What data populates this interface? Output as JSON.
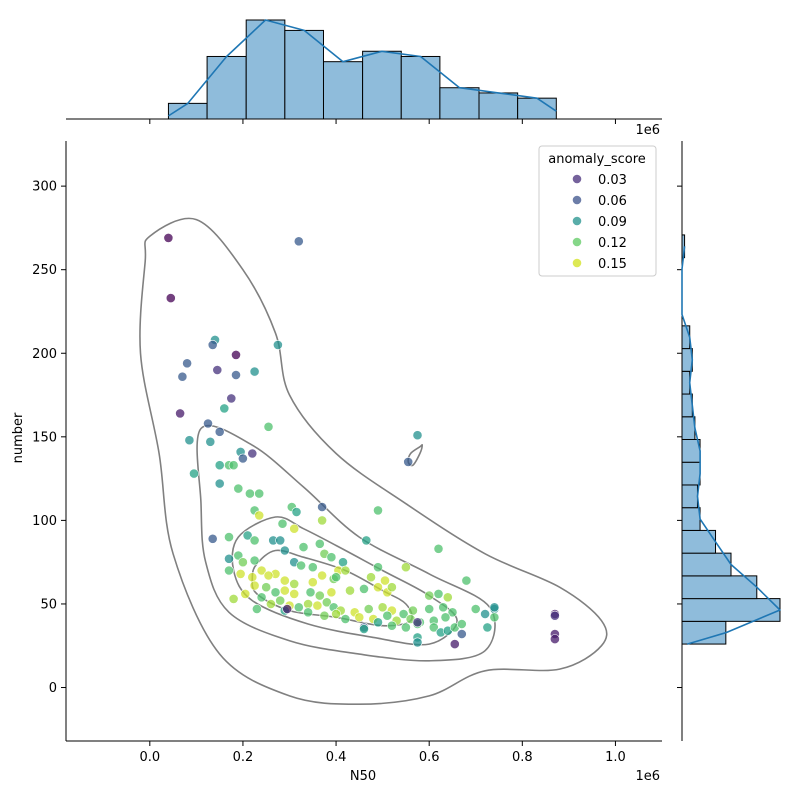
{
  "chart_data": {
    "type": "scatter",
    "kind": "joint plot with KDE contours and marginal histograms",
    "xlabel": "N50",
    "ylabel": "number",
    "x_offset_label": "1e6",
    "top_offset_label": "1e6",
    "xlim": [
      -0.18,
      1.1
    ],
    "ylim": [
      -32,
      327
    ],
    "x_ticks": [
      0.0,
      0.2,
      0.4,
      0.6,
      0.8,
      1.0
    ],
    "x_tick_labels": [
      "0.0",
      "0.2",
      "0.4",
      "0.6",
      "0.8",
      "1.0"
    ],
    "y_ticks": [
      0,
      50,
      100,
      150,
      200,
      250,
      300
    ],
    "y_tick_labels": [
      "0",
      "50",
      "100",
      "150",
      "200",
      "250",
      "300"
    ],
    "grid": false,
    "legend": {
      "title": "anomaly_score",
      "placement": "top-right",
      "entries": [
        {
          "label": "0.03",
          "color": "#472d7b"
        },
        {
          "label": "0.06",
          "color": "#3b528b"
        },
        {
          "label": "0.09",
          "color": "#21918c"
        },
        {
          "label": "0.12",
          "color": "#5ec962"
        },
        {
          "label": "0.15",
          "color": "#d2e21b"
        }
      ]
    },
    "colormap": "viridis",
    "score_range": [
      0.02,
      0.16
    ],
    "points": [
      [
        0.04,
        269,
        0.02
      ],
      [
        0.045,
        233,
        0.02
      ],
      [
        0.32,
        267,
        0.06
      ],
      [
        0.14,
        208,
        0.09
      ],
      [
        0.135,
        205,
        0.06
      ],
      [
        0.08,
        194,
        0.06
      ],
      [
        0.07,
        186,
        0.06
      ],
      [
        0.185,
        199,
        0.02
      ],
      [
        0.145,
        190,
        0.04
      ],
      [
        0.185,
        187,
        0.06
      ],
      [
        0.225,
        189,
        0.09
      ],
      [
        0.275,
        205,
        0.09
      ],
      [
        0.175,
        173,
        0.04
      ],
      [
        0.065,
        164,
        0.03
      ],
      [
        0.16,
        167,
        0.1
      ],
      [
        0.125,
        158,
        0.06
      ],
      [
        0.15,
        153,
        0.06
      ],
      [
        0.085,
        148,
        0.09
      ],
      [
        0.13,
        147,
        0.09
      ],
      [
        0.195,
        141,
        0.09
      ],
      [
        0.22,
        140,
        0.04
      ],
      [
        0.2,
        137,
        0.06
      ],
      [
        0.255,
        156,
        0.12
      ],
      [
        0.15,
        133,
        0.1
      ],
      [
        0.17,
        133,
        0.12
      ],
      [
        0.18,
        133,
        0.12
      ],
      [
        0.095,
        128,
        0.1
      ],
      [
        0.15,
        122,
        0.09
      ],
      [
        0.19,
        119,
        0.12
      ],
      [
        0.215,
        116,
        0.12
      ],
      [
        0.235,
        116,
        0.12
      ],
      [
        0.37,
        108,
        0.06
      ],
      [
        0.305,
        108,
        0.12
      ],
      [
        0.315,
        105,
        0.1
      ],
      [
        0.225,
        106,
        0.12
      ],
      [
        0.235,
        103,
        0.15
      ],
      [
        0.37,
        100,
        0.14
      ],
      [
        0.285,
        98,
        0.12
      ],
      [
        0.31,
        95,
        0.15
      ],
      [
        0.49,
        106,
        0.12
      ],
      [
        0.575,
        151,
        0.09
      ],
      [
        0.555,
        135,
        0.06
      ],
      [
        0.135,
        89,
        0.06
      ],
      [
        0.17,
        90,
        0.12
      ],
      [
        0.21,
        91,
        0.1
      ],
      [
        0.225,
        88,
        0.12
      ],
      [
        0.265,
        88,
        0.09
      ],
      [
        0.28,
        88,
        0.09
      ],
      [
        0.29,
        82,
        0.09
      ],
      [
        0.33,
        84,
        0.12
      ],
      [
        0.365,
        86,
        0.12
      ],
      [
        0.375,
        80,
        0.13
      ],
      [
        0.39,
        78,
        0.12
      ],
      [
        0.415,
        75,
        0.1
      ],
      [
        0.465,
        88,
        0.1
      ],
      [
        0.62,
        83,
        0.12
      ],
      [
        0.17,
        77,
        0.09
      ],
      [
        0.19,
        79,
        0.12
      ],
      [
        0.2,
        75,
        0.13
      ],
      [
        0.225,
        76,
        0.12
      ],
      [
        0.24,
        70,
        0.15
      ],
      [
        0.27,
        68,
        0.15
      ],
      [
        0.31,
        75,
        0.09
      ],
      [
        0.325,
        73,
        0.12
      ],
      [
        0.35,
        72,
        0.12
      ],
      [
        0.405,
        70,
        0.15
      ],
      [
        0.42,
        70,
        0.14
      ],
      [
        0.49,
        72,
        0.12
      ],
      [
        0.55,
        72,
        0.14
      ],
      [
        0.17,
        70,
        0.12
      ],
      [
        0.195,
        68,
        0.15
      ],
      [
        0.22,
        66,
        0.15
      ],
      [
        0.255,
        67,
        0.15
      ],
      [
        0.29,
        64,
        0.15
      ],
      [
        0.31,
        62,
        0.14
      ],
      [
        0.35,
        63,
        0.15
      ],
      [
        0.395,
        65,
        0.13
      ],
      [
        0.4,
        66,
        0.12
      ],
      [
        0.37,
        67,
        0.15
      ],
      [
        0.475,
        66,
        0.14
      ],
      [
        0.505,
        64,
        0.15
      ],
      [
        0.68,
        64,
        0.12
      ],
      [
        0.225,
        61,
        0.15
      ],
      [
        0.25,
        60,
        0.13
      ],
      [
        0.27,
        57,
        0.12
      ],
      [
        0.29,
        58,
        0.15
      ],
      [
        0.31,
        56,
        0.15
      ],
      [
        0.345,
        57,
        0.12
      ],
      [
        0.365,
        55,
        0.13
      ],
      [
        0.39,
        57,
        0.15
      ],
      [
        0.43,
        58,
        0.14
      ],
      [
        0.46,
        59,
        0.12
      ],
      [
        0.49,
        60,
        0.15
      ],
      [
        0.51,
        57,
        0.15
      ],
      [
        0.52,
        60,
        0.14
      ],
      [
        0.6,
        55,
        0.13
      ],
      [
        0.62,
        56,
        0.12
      ],
      [
        0.64,
        54,
        0.14
      ],
      [
        0.18,
        53,
        0.14
      ],
      [
        0.205,
        56,
        0.15
      ],
      [
        0.24,
        54,
        0.12
      ],
      [
        0.26,
        50,
        0.14
      ],
      [
        0.28,
        52,
        0.13
      ],
      [
        0.3,
        49,
        0.15
      ],
      [
        0.32,
        48,
        0.12
      ],
      [
        0.34,
        50,
        0.14
      ],
      [
        0.36,
        49,
        0.15
      ],
      [
        0.38,
        51,
        0.13
      ],
      [
        0.395,
        48,
        0.12
      ],
      [
        0.41,
        46,
        0.14
      ],
      [
        0.44,
        45,
        0.15
      ],
      [
        0.47,
        47,
        0.13
      ],
      [
        0.5,
        48,
        0.14
      ],
      [
        0.52,
        46,
        0.15
      ],
      [
        0.545,
        44,
        0.12
      ],
      [
        0.565,
        46,
        0.13
      ],
      [
        0.6,
        47,
        0.12
      ],
      [
        0.63,
        48,
        0.12
      ],
      [
        0.65,
        45,
        0.12
      ],
      [
        0.7,
        47,
        0.12
      ],
      [
        0.74,
        47,
        0.09
      ],
      [
        0.74,
        48,
        0.09
      ],
      [
        0.23,
        47,
        0.12
      ],
      [
        0.29,
        46,
        0.1
      ],
      [
        0.34,
        45,
        0.12
      ],
      [
        0.375,
        43,
        0.13
      ],
      [
        0.4,
        44,
        0.14
      ],
      [
        0.42,
        41,
        0.12
      ],
      [
        0.45,
        42,
        0.15
      ],
      [
        0.48,
        41,
        0.15
      ],
      [
        0.51,
        43,
        0.12
      ],
      [
        0.53,
        40,
        0.14
      ],
      [
        0.56,
        41,
        0.13
      ],
      [
        0.58,
        39,
        0.12
      ],
      [
        0.61,
        40,
        0.12
      ],
      [
        0.635,
        42,
        0.12
      ],
      [
        0.72,
        44,
        0.09
      ],
      [
        0.74,
        42,
        0.12
      ],
      [
        0.295,
        47,
        0.03
      ],
      [
        0.46,
        36,
        0.06
      ],
      [
        0.46,
        35,
        0.1
      ],
      [
        0.49,
        39,
        0.1
      ],
      [
        0.52,
        37,
        0.12
      ],
      [
        0.55,
        36,
        0.12
      ],
      [
        0.575,
        38,
        0.12
      ],
      [
        0.575,
        39,
        0.04
      ],
      [
        0.61,
        36,
        0.12
      ],
      [
        0.625,
        33,
        0.1
      ],
      [
        0.64,
        34,
        0.1
      ],
      [
        0.655,
        36,
        0.12
      ],
      [
        0.67,
        38,
        0.12
      ],
      [
        0.725,
        36,
        0.1
      ],
      [
        0.575,
        30,
        0.1
      ],
      [
        0.575,
        27,
        0.09
      ],
      [
        0.655,
        26,
        0.03
      ],
      [
        0.67,
        32,
        0.06
      ],
      [
        0.87,
        44,
        0.03
      ],
      [
        0.87,
        43,
        0.04
      ],
      [
        0.87,
        32,
        0.03
      ],
      [
        0.87,
        29,
        0.03
      ]
    ],
    "contours": [
      [
        [
          0.0,
          270
        ],
        [
          0.1,
          280
        ],
        [
          0.2,
          250
        ],
        [
          0.27,
          212
        ],
        [
          0.3,
          175
        ],
        [
          0.4,
          140
        ],
        [
          0.55,
          110
        ],
        [
          0.72,
          80
        ],
        [
          0.88,
          60
        ],
        [
          0.97,
          40
        ],
        [
          0.97,
          25
        ],
        [
          0.88,
          11
        ],
        [
          0.72,
          10
        ],
        [
          0.6,
          -5
        ],
        [
          0.45,
          -10
        ],
        [
          0.3,
          -5
        ],
        [
          0.15,
          20
        ],
        [
          0.05,
          80
        ],
        [
          0.02,
          140
        ],
        [
          -0.02,
          200
        ],
        [
          -0.01,
          255
        ],
        [
          0.0,
          270
        ]
      ],
      [
        [
          0.11,
          155
        ],
        [
          0.22,
          145
        ],
        [
          0.33,
          120
        ],
        [
          0.45,
          90
        ],
        [
          0.6,
          68
        ],
        [
          0.73,
          48
        ],
        [
          0.72,
          22
        ],
        [
          0.6,
          16
        ],
        [
          0.45,
          20
        ],
        [
          0.3,
          28
        ],
        [
          0.17,
          45
        ],
        [
          0.12,
          75
        ],
        [
          0.11,
          110
        ],
        [
          0.11,
          155
        ]
      ],
      [
        [
          0.19,
          90
        ],
        [
          0.27,
          102
        ],
        [
          0.33,
          95
        ],
        [
          0.4,
          85
        ],
        [
          0.5,
          70
        ],
        [
          0.6,
          55
        ],
        [
          0.66,
          40
        ],
        [
          0.6,
          26
        ],
        [
          0.48,
          30
        ],
        [
          0.34,
          38
        ],
        [
          0.22,
          52
        ],
        [
          0.18,
          70
        ],
        [
          0.19,
          90
        ]
      ],
      [
        [
          0.23,
          74
        ],
        [
          0.27,
          82
        ],
        [
          0.33,
          78
        ],
        [
          0.42,
          70
        ],
        [
          0.5,
          58
        ],
        [
          0.55,
          50
        ],
        [
          0.56,
          40
        ],
        [
          0.5,
          37
        ],
        [
          0.4,
          42
        ],
        [
          0.3,
          46
        ],
        [
          0.23,
          56
        ],
        [
          0.22,
          66
        ],
        [
          0.23,
          74
        ]
      ],
      [
        [
          0.56,
          140
        ],
        [
          0.58,
          144
        ],
        [
          0.585,
          145
        ],
        [
          0.58,
          140
        ],
        [
          0.565,
          133
        ],
        [
          0.555,
          135
        ],
        [
          0.56,
          140
        ]
      ]
    ],
    "top_histogram": {
      "bin_edges": [
        0.04,
        0.123,
        0.207,
        0.29,
        0.373,
        0.457,
        0.54,
        0.623,
        0.707,
        0.79,
        0.873
      ],
      "counts": [
        3,
        12,
        19,
        17,
        11,
        13,
        12,
        6,
        5,
        4
      ]
    },
    "right_histogram": {
      "bin_edges": [
        26,
        39.6,
        53.2,
        66.8,
        80.4,
        94,
        107.6,
        121.2,
        134.8,
        148.4,
        162,
        175.6,
        189.2,
        202.8,
        216.4,
        230,
        243.6,
        257.2,
        270.8
      ],
      "counts": [
        17,
        38,
        29,
        19,
        13,
        7,
        6,
        7,
        7,
        5,
        4,
        3,
        4,
        3,
        0,
        0,
        0,
        1
      ]
    }
  }
}
